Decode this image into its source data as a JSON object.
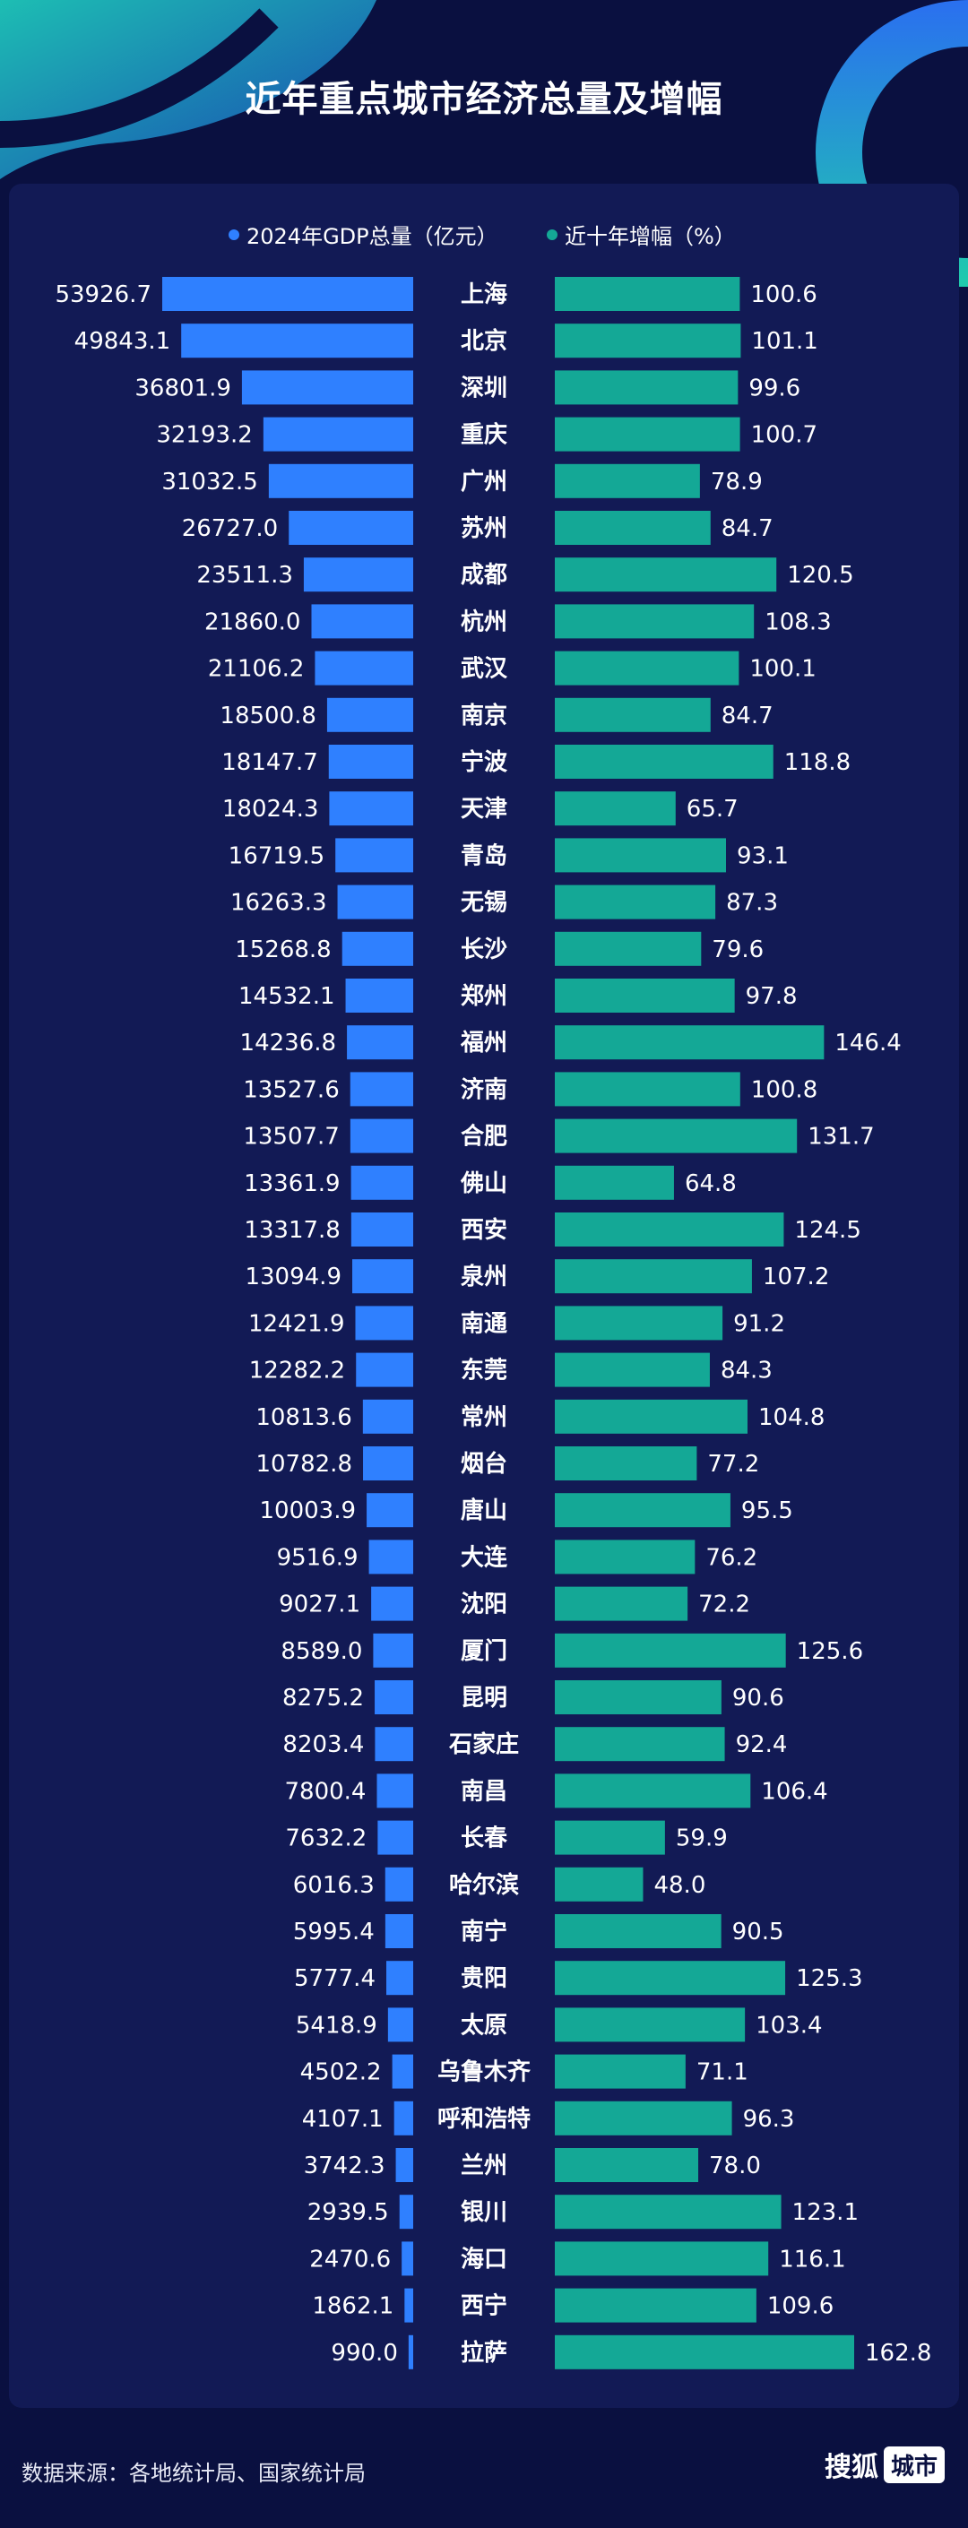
{
  "title": "近年重点城市经济总量及增幅",
  "footer": {
    "source": "数据来源：各地统计局、国家统计局",
    "logo_text": "搜狐",
    "logo_box": "城市"
  },
  "colors": {
    "gdp": "#2f80ff",
    "growth": "#14a896",
    "background": "#0a1040",
    "panel": "#121a55"
  },
  "chart_data": {
    "type": "bar",
    "title": "近年重点城市经济总量及增幅",
    "legend_position": "top",
    "series": [
      {
        "name": "2024年GDP总量（亿元）",
        "values": [
          53926.7,
          49843.1,
          36801.9,
          32193.2,
          31032.5,
          26727.0,
          23511.3,
          21860.0,
          21106.2,
          18500.8,
          18147.7,
          18024.3,
          16719.5,
          16263.3,
          15268.8,
          14532.1,
          14236.8,
          13527.6,
          13507.7,
          13361.9,
          13317.8,
          13094.9,
          12421.9,
          12282.2,
          10813.6,
          10782.8,
          10003.9,
          9516.9,
          9027.1,
          8589.0,
          8275.2,
          8203.4,
          7800.4,
          7632.2,
          6016.3,
          5995.4,
          5777.4,
          5418.9,
          4502.2,
          4107.1,
          3742.3,
          2939.5,
          2470.6,
          1862.1,
          990.0
        ]
      },
      {
        "name": "近十年增幅（%）",
        "values": [
          100.6,
          101.1,
          99.6,
          100.7,
          78.9,
          84.7,
          120.5,
          108.3,
          100.1,
          84.7,
          118.8,
          65.7,
          93.1,
          87.3,
          79.6,
          97.8,
          146.4,
          100.8,
          131.7,
          64.8,
          124.5,
          107.2,
          91.2,
          84.3,
          104.8,
          77.2,
          95.5,
          76.2,
          72.2,
          125.6,
          90.6,
          92.4,
          106.4,
          59.9,
          48.0,
          90.5,
          125.3,
          103.4,
          71.1,
          96.3,
          78.0,
          123.1,
          116.1,
          109.6,
          162.8
        ]
      }
    ],
    "categories": [
      "上海",
      "北京",
      "深圳",
      "重庆",
      "广州",
      "苏州",
      "成都",
      "杭州",
      "武汉",
      "南京",
      "宁波",
      "天津",
      "青岛",
      "无锡",
      "长沙",
      "郑州",
      "福州",
      "济南",
      "合肥",
      "佛山",
      "西安",
      "泉州",
      "南通",
      "东莞",
      "常州",
      "烟台",
      "唐山",
      "大连",
      "沈阳",
      "厦门",
      "昆明",
      "石家庄",
      "南昌",
      "长春",
      "哈尔滨",
      "南宁",
      "贵阳",
      "太原",
      "乌鲁木齐",
      "呼和浩特",
      "兰州",
      "银川",
      "海口",
      "西宁",
      "拉萨"
    ],
    "gdp_labels": [
      "53926.7",
      "49843.1",
      "36801.9",
      "32193.2",
      "31032.5",
      "26727.0",
      "23511.3",
      "21860.0",
      "21106.2",
      "18500.8",
      "18147.7",
      "18024.3",
      "16719.5",
      "16263.3",
      "15268.8",
      "14532.1",
      "14236.8",
      "13527.6",
      "13507.7",
      "13361.9",
      "13317.8",
      "13094.9",
      "12421.9",
      "12282.2",
      "10813.6",
      "10782.8",
      "10003.9",
      "9516.9",
      "9027.1",
      "8589.0",
      "8275.2",
      "8203.4",
      "7800.4",
      "7632.2",
      "6016.3",
      "5995.4",
      "5777.4",
      "5418.9",
      "4502.2",
      "4107.1",
      "3742.3",
      "2939.5",
      "2470.6",
      "1862.1",
      "990.0"
    ],
    "growth_labels": [
      "100.6",
      "101.1",
      "99.6",
      "100.7",
      "78.9",
      "84.7",
      "120.5",
      "108.3",
      "100.1",
      "84.7",
      "118.8",
      "65.7",
      "93.1",
      "87.3",
      "79.6",
      "97.8",
      "146.4",
      "100.8",
      "131.7",
      "64.8",
      "124.5",
      "107.2",
      "91.2",
      "84.3",
      "104.8",
      "77.2",
      "95.5",
      "76.2",
      "72.2",
      "125.6",
      "90.6",
      "92.4",
      "106.4",
      "59.9",
      "48.0",
      "90.5",
      "125.3",
      "103.4",
      "71.1",
      "96.3",
      "78.0",
      "123.1",
      "116.1",
      "109.6",
      "162.8"
    ]
  }
}
